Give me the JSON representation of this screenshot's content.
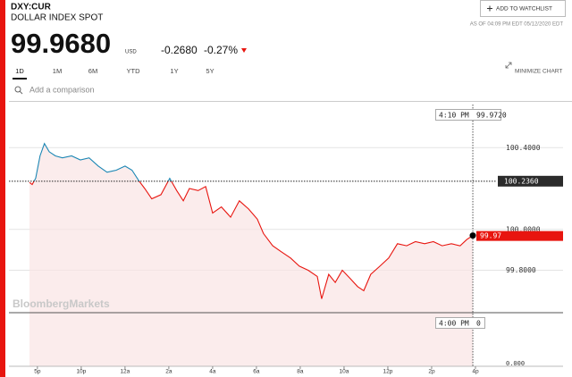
{
  "header": {
    "ticker": "DXY:CUR",
    "name": "DOLLAR INDEX SPOT",
    "watchlist_button": "ADD TO WATCHLIST",
    "as_of": "AS OF 04:09 PM EDT 05/12/2020 EDT",
    "price": "99.9680",
    "currency": "USD",
    "change": "-0.2680",
    "change_percent": "-0.27%"
  },
  "tabs": [
    "1D",
    "1M",
    "6M",
    "YTD",
    "1Y",
    "5Y"
  ],
  "minimize": "MINIMIZE CHART",
  "comparison_placeholder": "Add a comparison",
  "chart_data": {
    "type": "line",
    "watermark": "BloombergMarkets",
    "x": [
      -0.18,
      -0.12,
      -0.04,
      0.06,
      0.16,
      0.27,
      0.41,
      0.57,
      0.78,
      0.98,
      1.18,
      1.39,
      1.59,
      1.8,
      2.0,
      2.16,
      2.31,
      2.45,
      2.61,
      2.82,
      3.02,
      3.18,
      3.33,
      3.47,
      3.67,
      3.84,
      4.0,
      4.2,
      4.41,
      4.61,
      4.82,
      5.02,
      5.16,
      5.37,
      5.57,
      5.78,
      5.98,
      6.18,
      6.39,
      6.49,
      6.65,
      6.8,
      6.96,
      7.14,
      7.31,
      7.45,
      7.61,
      7.82,
      8.02,
      8.22,
      8.43,
      8.63,
      8.84,
      9.04,
      9.24,
      9.45,
      9.65,
      9.8,
      9.94
    ],
    "series": [
      {
        "color": "#e8150f",
        "color_above": "#1a86b4",
        "values": [
          100.23,
          100.22,
          100.25,
          100.36,
          100.42,
          100.38,
          100.36,
          100.35,
          100.36,
          100.34,
          100.35,
          100.31,
          100.28,
          100.29,
          100.31,
          100.29,
          100.24,
          100.2,
          100.15,
          100.17,
          100.25,
          100.19,
          100.14,
          100.2,
          100.19,
          100.21,
          100.08,
          100.11,
          100.06,
          100.14,
          100.1,
          100.05,
          99.98,
          99.92,
          99.89,
          99.86,
          99.82,
          99.8,
          99.77,
          99.66,
          99.78,
          99.74,
          99.8,
          99.76,
          99.72,
          99.7,
          99.78,
          99.82,
          99.86,
          99.93,
          99.92,
          99.94,
          99.93,
          99.94,
          99.92,
          99.93,
          99.92,
          99.95,
          99.97
        ]
      }
    ],
    "xlim": [
      -0.65,
      12
    ],
    "xticks": [
      {
        "value": 0,
        "label": "5p"
      },
      {
        "value": 1,
        "label": "10p"
      },
      {
        "value": 2,
        "label": "12a"
      },
      {
        "value": 3,
        "label": "2a"
      },
      {
        "value": 4,
        "label": "4a"
      },
      {
        "value": 5,
        "label": "6a"
      },
      {
        "value": 6,
        "label": "8a"
      },
      {
        "value": 7,
        "label": "10a"
      },
      {
        "value": 8,
        "label": "12p"
      },
      {
        "value": 9,
        "label": "2p"
      },
      {
        "value": 10,
        "label": "4p"
      }
    ],
    "ylim": [
      99.33,
      100.62
    ],
    "yticks": [
      {
        "value": 100.4,
        "label": "100.4000"
      },
      {
        "value": 100.0,
        "label": "100.0000"
      },
      {
        "value": 99.8,
        "label": "99.8000"
      }
    ],
    "grid": true,
    "previous_close": {
      "value": 100.236,
      "label": "100.2360"
    },
    "last_label": {
      "value": 99.97,
      "label": "99.97"
    },
    "crosshair_top": {
      "time": "4:10 PM",
      "value": "99.9720"
    },
    "crosshair_bottom": {
      "time": "4:00 PM",
      "value": "0"
    },
    "lower_axis_label": "0.000"
  }
}
